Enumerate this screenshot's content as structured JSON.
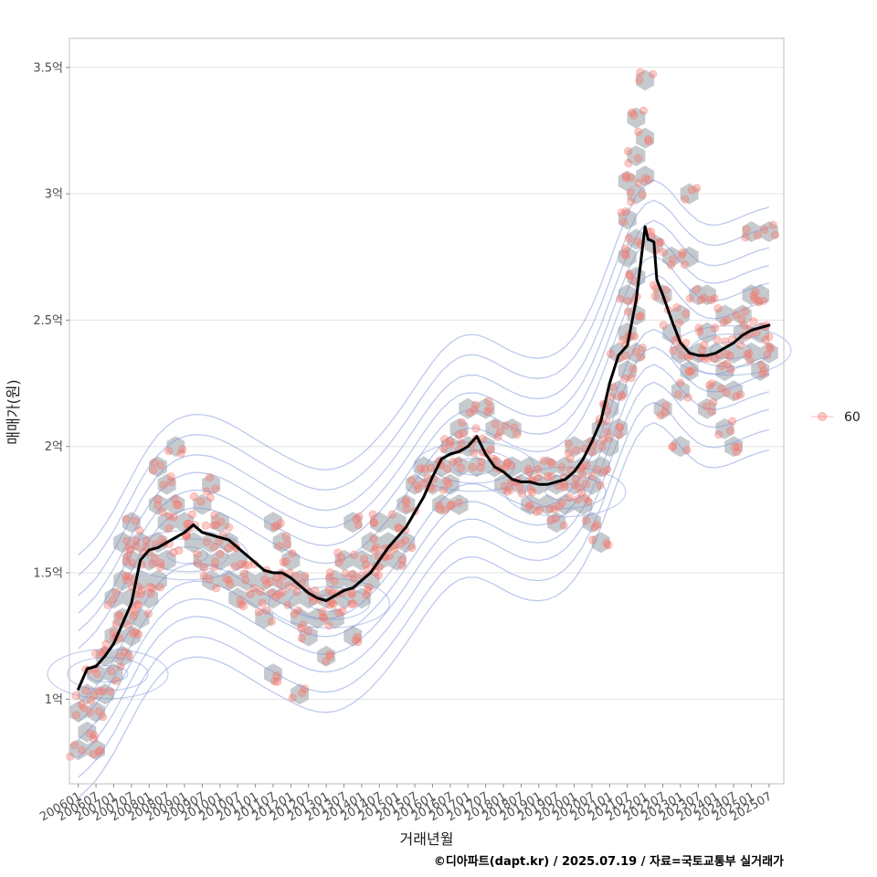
{
  "chart_data": {
    "type": "scatter",
    "xlabel": "거래년월",
    "ylabel": "매매가(원)",
    "caption": "©디아파트(dapt.kr) / 2025.07.19 / 자료=국토교통부 실거래가",
    "x_tick_labels": [
      "200601",
      "200607",
      "200701",
      "200707",
      "200801",
      "200807",
      "200901",
      "200907",
      "201001",
      "201007",
      "201101",
      "201107",
      "201201",
      "201207",
      "201301",
      "201307",
      "201401",
      "201407",
      "201501",
      "201507",
      "201601",
      "201607",
      "201701",
      "201707",
      "201801",
      "201807",
      "201901",
      "201907",
      "202001",
      "202007",
      "202101",
      "202107",
      "202201",
      "202207",
      "202301",
      "202307",
      "202401",
      "202407",
      "202501",
      "202507"
    ],
    "x_range": [
      "2005-10",
      "2025-12"
    ],
    "ylim": [
      0.665,
      3.615
    ],
    "y_ticks": [
      1,
      1.5,
      2,
      2.5,
      3,
      3.5
    ],
    "y_tick_labels": [
      "1억",
      "1.5억",
      "2억",
      "2.5억",
      "3억",
      "3.5억"
    ],
    "y_unit": "억",
    "grid": true,
    "legend_position": "right",
    "legend": [
      {
        "label": "60",
        "color": "#f8766d"
      }
    ],
    "colors": {
      "points": "#f8766d",
      "hex": "#bfc4c9",
      "contour": "#7b93d8",
      "trend": "#000000"
    },
    "layers": [
      "hexbin",
      "density-contour",
      "points",
      "moving-average-line"
    ],
    "trend_line": {
      "name": "moving average",
      "points": [
        [
          "2006-01",
          1.04
        ],
        [
          "2006-04",
          1.12
        ],
        [
          "2006-07",
          1.13
        ],
        [
          "2006-10",
          1.17
        ],
        [
          "2007-01",
          1.22
        ],
        [
          "2007-04",
          1.3
        ],
        [
          "2007-07",
          1.38
        ],
        [
          "2007-10",
          1.55
        ],
        [
          "2008-01",
          1.59
        ],
        [
          "2008-04",
          1.6
        ],
        [
          "2008-07",
          1.62
        ],
        [
          "2008-10",
          1.64
        ],
        [
          "2009-01",
          1.66
        ],
        [
          "2009-04",
          1.69
        ],
        [
          "2009-07",
          1.66
        ],
        [
          "2009-10",
          1.65
        ],
        [
          "2010-01",
          1.64
        ],
        [
          "2010-04",
          1.63
        ],
        [
          "2010-07",
          1.6
        ],
        [
          "2010-10",
          1.57
        ],
        [
          "2011-01",
          1.54
        ],
        [
          "2011-04",
          1.51
        ],
        [
          "2011-07",
          1.5
        ],
        [
          "2011-10",
          1.5
        ],
        [
          "2012-01",
          1.48
        ],
        [
          "2012-04",
          1.45
        ],
        [
          "2012-07",
          1.42
        ],
        [
          "2012-10",
          1.4
        ],
        [
          "2013-01",
          1.39
        ],
        [
          "2013-04",
          1.41
        ],
        [
          "2013-07",
          1.43
        ],
        [
          "2013-10",
          1.44
        ],
        [
          "2014-01",
          1.47
        ],
        [
          "2014-04",
          1.5
        ],
        [
          "2014-07",
          1.55
        ],
        [
          "2014-10",
          1.6
        ],
        [
          "2015-01",
          1.64
        ],
        [
          "2015-04",
          1.68
        ],
        [
          "2015-07",
          1.74
        ],
        [
          "2015-10",
          1.8
        ],
        [
          "2016-01",
          1.88
        ],
        [
          "2016-04",
          1.95
        ],
        [
          "2016-07",
          1.97
        ],
        [
          "2016-10",
          1.98
        ],
        [
          "2017-01",
          2.0
        ],
        [
          "2017-04",
          2.04
        ],
        [
          "2017-07",
          1.97
        ],
        [
          "2017-10",
          1.92
        ],
        [
          "2018-01",
          1.9
        ],
        [
          "2018-04",
          1.87
        ],
        [
          "2018-07",
          1.86
        ],
        [
          "2018-10",
          1.86
        ],
        [
          "2019-01",
          1.85
        ],
        [
          "2019-04",
          1.85
        ],
        [
          "2019-07",
          1.86
        ],
        [
          "2019-10",
          1.87
        ],
        [
          "2020-01",
          1.9
        ],
        [
          "2020-04",
          1.95
        ],
        [
          "2020-07",
          2.02
        ],
        [
          "2020-10",
          2.1
        ],
        [
          "2021-01",
          2.25
        ],
        [
          "2021-04",
          2.36
        ],
        [
          "2021-07",
          2.4
        ],
        [
          "2021-10",
          2.58
        ],
        [
          "2022-01",
          2.87
        ],
        [
          "2022-02",
          2.82
        ],
        [
          "2022-04",
          2.81
        ],
        [
          "2022-05",
          2.66
        ],
        [
          "2022-07",
          2.6
        ],
        [
          "2022-10",
          2.5
        ],
        [
          "2023-01",
          2.41
        ],
        [
          "2023-04",
          2.37
        ],
        [
          "2023-07",
          2.36
        ],
        [
          "2023-10",
          2.36
        ],
        [
          "2024-01",
          2.37
        ],
        [
          "2024-04",
          2.39
        ],
        [
          "2024-07",
          2.41
        ],
        [
          "2024-10",
          2.44
        ],
        [
          "2025-01",
          2.46
        ],
        [
          "2025-04",
          2.47
        ],
        [
          "2025-07",
          2.48
        ]
      ]
    },
    "density_modes": [
      {
        "x": "2006-11",
        "y": 1.1
      },
      {
        "x": "2009-02",
        "y": 1.57
      },
      {
        "x": "2013-02",
        "y": 1.38
      },
      {
        "x": "2017-03",
        "y": 1.92
      },
      {
        "x": "2019-10",
        "y": 1.82
      },
      {
        "x": "2024-06",
        "y": 2.38
      }
    ],
    "hex_bins": [
      [
        "2006-01",
        0.8
      ],
      [
        "2006-07",
        0.8
      ],
      [
        "2006-01",
        0.95
      ],
      [
        "2006-07",
        0.95
      ],
      [
        "2006-04",
        0.87
      ],
      [
        "2006-10",
        1.02
      ],
      [
        "2006-04",
        1.02
      ],
      [
        "2006-07",
        1.1
      ],
      [
        "2007-01",
        1.1
      ],
      [
        "2006-10",
        1.17
      ],
      [
        "2007-04",
        1.17
      ],
      [
        "2007-01",
        1.25
      ],
      [
        "2007-07",
        1.25
      ],
      [
        "2007-04",
        1.32
      ],
      [
        "2007-10",
        1.32
      ],
      [
        "2007-01",
        1.4
      ],
      [
        "2007-07",
        1.4
      ],
      [
        "2008-01",
        1.4
      ],
      [
        "2007-04",
        1.47
      ],
      [
        "2007-10",
        1.47
      ],
      [
        "2008-04",
        1.47
      ],
      [
        "2007-07",
        1.55
      ],
      [
        "2008-01",
        1.55
      ],
      [
        "2008-07",
        1.55
      ],
      [
        "2007-04",
        1.62
      ],
      [
        "2007-10",
        1.62
      ],
      [
        "2008-04",
        1.62
      ],
      [
        "2007-07",
        1.7
      ],
      [
        "2008-07",
        1.7
      ],
      [
        "2008-04",
        1.77
      ],
      [
        "2008-10",
        1.77
      ],
      [
        "2008-07",
        1.85
      ],
      [
        "2008-04",
        1.92
      ],
      [
        "2008-10",
        2.0
      ],
      [
        "2009-01",
        1.7
      ],
      [
        "2009-04",
        1.62
      ],
      [
        "2009-07",
        1.55
      ],
      [
        "2009-10",
        1.62
      ],
      [
        "2009-10",
        1.47
      ],
      [
        "2010-01",
        1.55
      ],
      [
        "2010-01",
        1.7
      ],
      [
        "2009-07",
        1.77
      ],
      [
        "2009-10",
        1.85
      ],
      [
        "2010-04",
        1.62
      ],
      [
        "2010-04",
        1.47
      ],
      [
        "2010-07",
        1.4
      ],
      [
        "2010-10",
        1.47
      ],
      [
        "2010-07",
        1.55
      ],
      [
        "2011-01",
        1.4
      ],
      [
        "2011-04",
        1.47
      ],
      [
        "2011-07",
        1.4
      ],
      [
        "2011-10",
        1.47
      ],
      [
        "2012-01",
        1.4
      ],
      [
        "2012-04",
        1.32
      ],
      [
        "2011-04",
        1.32
      ],
      [
        "2011-10",
        1.62
      ],
      [
        "2011-07",
        1.7
      ],
      [
        "2012-01",
        1.55
      ],
      [
        "2012-04",
        1.47
      ],
      [
        "2012-07",
        1.4
      ],
      [
        "2012-10",
        1.32
      ],
      [
        "2013-01",
        1.4
      ],
      [
        "2013-04",
        1.32
      ],
      [
        "2013-07",
        1.4
      ],
      [
        "2013-04",
        1.47
      ],
      [
        "2012-07",
        1.25
      ],
      [
        "2013-01",
        1.17
      ],
      [
        "2011-07",
        1.1
      ],
      [
        "2012-04",
        1.02
      ],
      [
        "2013-10",
        1.47
      ],
      [
        "2013-07",
        1.55
      ],
      [
        "2014-01",
        1.4
      ],
      [
        "2014-04",
        1.47
      ],
      [
        "2014-01",
        1.55
      ],
      [
        "2014-07",
        1.55
      ],
      [
        "2014-10",
        1.62
      ],
      [
        "2014-04",
        1.62
      ],
      [
        "2013-10",
        1.7
      ],
      [
        "2015-01",
        1.55
      ],
      [
        "2015-01",
        1.7
      ],
      [
        "2015-04",
        1.62
      ],
      [
        "2015-04",
        1.77
      ],
      [
        "2015-07",
        1.85
      ],
      [
        "2015-10",
        1.92
      ],
      [
        "2016-01",
        1.85
      ],
      [
        "2016-04",
        1.92
      ],
      [
        "2016-07",
        2.0
      ],
      [
        "2016-07",
        1.85
      ],
      [
        "2016-10",
        1.92
      ],
      [
        "2016-10",
        2.07
      ],
      [
        "2017-01",
        2.15
      ],
      [
        "2017-01",
        2.0
      ],
      [
        "2017-04",
        1.92
      ],
      [
        "2017-07",
        2.0
      ],
      [
        "2017-07",
        2.15
      ],
      [
        "2017-10",
        2.07
      ],
      [
        "2017-10",
        1.92
      ],
      [
        "2018-01",
        1.85
      ],
      [
        "2018-04",
        1.92
      ],
      [
        "2018-04",
        2.07
      ],
      [
        "2018-07",
        1.85
      ],
      [
        "2018-10",
        1.77
      ],
      [
        "2018-10",
        1.92
      ],
      [
        "2019-01",
        1.85
      ],
      [
        "2019-04",
        1.92
      ],
      [
        "2019-04",
        1.77
      ],
      [
        "2019-07",
        1.85
      ],
      [
        "2019-10",
        1.92
      ],
      [
        "2019-10",
        1.77
      ],
      [
        "2020-01",
        1.85
      ],
      [
        "2020-01",
        2.0
      ],
      [
        "2020-04",
        1.92
      ],
      [
        "2020-04",
        1.77
      ],
      [
        "2020-07",
        1.85
      ],
      [
        "2020-07",
        2.0
      ],
      [
        "2020-10",
        2.07
      ],
      [
        "2020-10",
        1.92
      ],
      [
        "2021-01",
        2.0
      ],
      [
        "2021-01",
        2.15
      ],
      [
        "2021-04",
        2.22
      ],
      [
        "2021-04",
        2.07
      ],
      [
        "2021-07",
        2.3
      ],
      [
        "2021-07",
        2.45
      ],
      [
        "2021-10",
        2.37
      ],
      [
        "2021-10",
        2.52
      ],
      [
        "2021-04",
        2.37
      ],
      [
        "2021-07",
        2.6
      ],
      [
        "2021-10",
        2.67
      ],
      [
        "2021-07",
        2.75
      ],
      [
        "2021-10",
        2.82
      ],
      [
        "2021-07",
        2.9
      ],
      [
        "2021-10",
        3.0
      ],
      [
        "2021-07",
        3.05
      ],
      [
        "2021-10",
        3.15
      ],
      [
        "2022-01",
        3.22
      ],
      [
        "2021-10",
        3.3
      ],
      [
        "2022-01",
        3.45
      ],
      [
        "2022-01",
        3.07
      ],
      [
        "2019-07",
        1.7
      ],
      [
        "2020-07",
        1.7
      ],
      [
        "2020-10",
        1.62
      ],
      [
        "2016-04",
        1.77
      ],
      [
        "2016-10",
        1.77
      ],
      [
        "2014-07",
        1.7
      ],
      [
        "2013-10",
        1.25
      ],
      [
        "2022-04",
        2.8
      ],
      [
        "2022-07",
        2.6
      ],
      [
        "2022-10",
        2.45
      ],
      [
        "2023-01",
        2.37
      ],
      [
        "2023-04",
        2.3
      ],
      [
        "2023-07",
        2.37
      ],
      [
        "2023-10",
        2.45
      ],
      [
        "2024-01",
        2.37
      ],
      [
        "2024-04",
        2.3
      ],
      [
        "2024-07",
        2.37
      ],
      [
        "2024-10",
        2.45
      ],
      [
        "2025-01",
        2.37
      ],
      [
        "2025-04",
        2.45
      ],
      [
        "2025-07",
        2.37
      ],
      [
        "2024-01",
        2.22
      ],
      [
        "2024-07",
        2.22
      ],
      [
        "2023-10",
        2.15
      ],
      [
        "2024-04",
        2.07
      ],
      [
        "2024-10",
        2.52
      ],
      [
        "2024-04",
        2.52
      ],
      [
        "2025-01",
        2.6
      ],
      [
        "2025-04",
        2.3
      ],
      [
        "2025-01",
        2.85
      ],
      [
        "2025-07",
        2.85
      ],
      [
        "2023-07",
        2.6
      ],
      [
        "2022-10",
        2.75
      ],
      [
        "2023-04",
        2.75
      ],
      [
        "2023-04",
        3.0
      ],
      [
        "2023-01",
        2.52
      ],
      [
        "2022-07",
        2.15
      ],
      [
        "2023-01",
        2.0
      ],
      [
        "2023-01",
        2.22
      ],
      [
        "2024-07",
        2.0
      ],
      [
        "2023-10",
        2.6
      ],
      [
        "2025-04",
        2.6
      ]
    ]
  }
}
